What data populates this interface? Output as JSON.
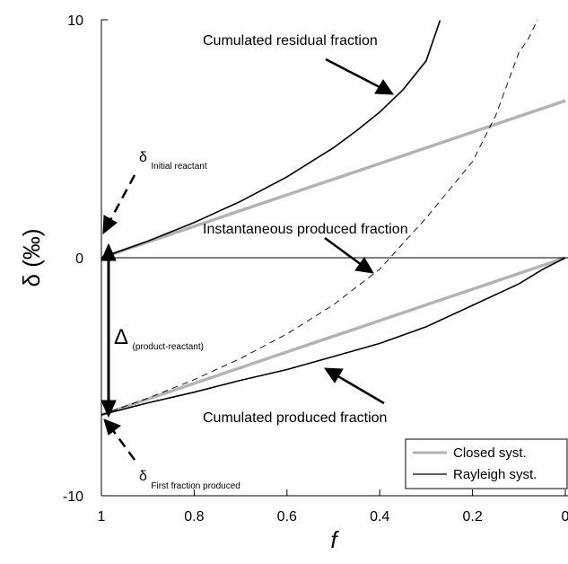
{
  "chart_data": {
    "type": "line",
    "xlabel": "f",
    "ylabel": "δ (‰)",
    "xlim": [
      1,
      0
    ],
    "ylim": [
      -10,
      10
    ],
    "x_reversed": true,
    "xticks": [
      "1",
      "0.8",
      "0.6",
      "0.4",
      "0.2",
      "0"
    ],
    "yticks": [
      "10",
      "0",
      "-10"
    ],
    "grid": false,
    "legend_position": "bottom-right",
    "legend": [
      {
        "label": "Closed syst.",
        "color": "#b3b3b3"
      },
      {
        "label": "Rayleigh syst.",
        "color": "#000000"
      }
    ],
    "series": [
      {
        "name": "Closed syst.",
        "system": "closed",
        "curve": "residual",
        "color": "#b3b3b3",
        "x": [
          1,
          0.8,
          0.6,
          0.4,
          0.2,
          0
        ],
        "y": [
          0,
          1.32,
          2.64,
          3.96,
          5.28,
          6.6
        ]
      },
      {
        "name": "Closed syst.",
        "system": "closed",
        "curve": "produced",
        "color": "#b3b3b3",
        "x": [
          1,
          0.8,
          0.6,
          0.4,
          0.2,
          0
        ],
        "y": [
          -6.6,
          -5.28,
          -3.96,
          -2.64,
          -1.32,
          0
        ]
      },
      {
        "name": "Rayleigh syst.",
        "system": "rayleigh",
        "curve": "residual",
        "color": "#000000",
        "x": [
          1,
          0.9,
          0.8,
          0.7,
          0.6,
          0.5,
          0.45,
          0.4,
          0.35,
          0.3,
          0.27
        ],
        "y": [
          0,
          0.7,
          1.48,
          2.37,
          3.4,
          4.62,
          5.34,
          6.12,
          7.06,
          8.27,
          9.97
        ]
      },
      {
        "name": "Rayleigh syst.",
        "system": "rayleigh",
        "curve": "instantaneous",
        "color": "#000000",
        "x": [
          1,
          0.9,
          0.8,
          0.7,
          0.6,
          0.5,
          0.4,
          0.3,
          0.2,
          0.15,
          0.1,
          0.08,
          0.06
        ],
        "y": [
          -6.6,
          -5.9,
          -5.12,
          -4.23,
          -3.2,
          -1.98,
          -0.48,
          1.67,
          4.04,
          5.98,
          8.63,
          9.18,
          10
        ]
      },
      {
        "name": "Rayleigh syst.",
        "system": "rayleigh",
        "curve": "produced",
        "color": "#000000",
        "x": [
          1,
          0.9,
          0.8,
          0.7,
          0.6,
          0.5,
          0.4,
          0.3,
          0.2,
          0.1,
          0.05,
          0
        ],
        "y": [
          -6.6,
          -6.1,
          -5.65,
          -5.15,
          -4.7,
          -4.15,
          -3.6,
          -2.9,
          -2.0,
          -1.1,
          -0.5,
          0
        ]
      }
    ],
    "annotations": [
      {
        "text": "Cumulated residual fraction"
      },
      {
        "text": "Instantaneous produced fraction"
      },
      {
        "text": "Cumulated produced fraction"
      },
      {
        "symbol": "δ",
        "subscript": "Initial reactant"
      },
      {
        "symbol": "δ",
        "subscript": "First fraction produced"
      },
      {
        "symbol": "Δ",
        "subscript": "(product-reactant)"
      }
    ]
  }
}
